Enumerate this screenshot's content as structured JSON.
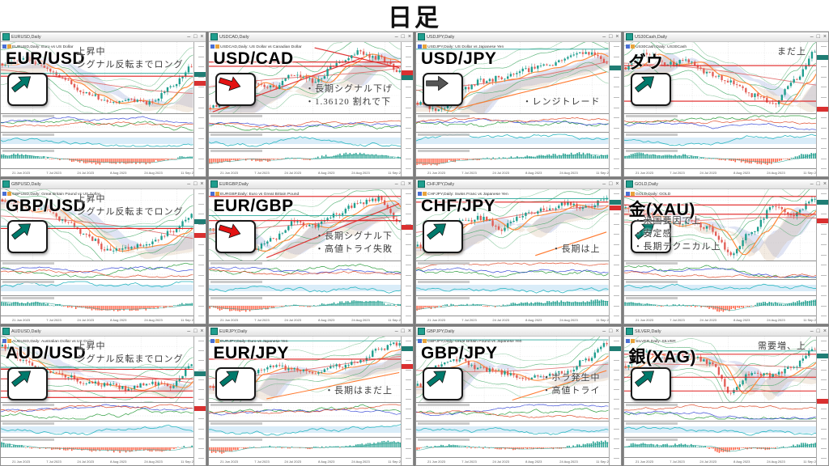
{
  "page": {
    "title": "日足"
  },
  "window_controls": {
    "minimize": "–",
    "maximize": "□",
    "close": "×"
  },
  "axis_dates": [
    "21 Jun 2023",
    "7 Jul 2023",
    "24 Jul 2023",
    "8 Aug 2023",
    "24 Aug 2023",
    "11 Sep 2023",
    "27 Sep 2023",
    "13 Oct 2023",
    "31 Oct 2023",
    "17 Nov 2023"
  ],
  "colors": {
    "candle_up": "#1f9e8e",
    "candle_down": "#e0544c",
    "bollinger": "#3aa45e",
    "ma_fast": "#ff8a3c",
    "ma_slow": "#e06666",
    "hline_red": "#e02020",
    "hline_teal": "#2aa79a",
    "hist_pos": "#1f9e8e",
    "hist_neg": "#ff5a3c",
    "osc_cyan": "#2ab6c0",
    "osc_green": "#2f9e3f",
    "osc_blue": "#4050d8",
    "osc_red": "#e05030",
    "arrow_up_teal": "#00796b",
    "arrow_down_red": "#e31212",
    "arrow_flat_gray": "#555555"
  },
  "panels": [
    {
      "window_title": "EURUSD,Daily",
      "info": "EURUSD,Daily: Euro vs US Dollar",
      "symbol": "EUR/USD",
      "arrow": {
        "dir": "up",
        "color": "#00796b"
      },
      "ann": {
        "pos": "tr",
        "lines": [
          "上昇中",
          "シグナル反転までロング"
        ]
      },
      "seed": 11,
      "trend": [
        0.3,
        0.22,
        0.35,
        0.55,
        0.72,
        0.84,
        0.8,
        0.86,
        0.62,
        0.36
      ],
      "red": [
        0.48
      ],
      "teal": [
        0.44
      ],
      "diag": []
    },
    {
      "window_title": "USDCAD,Daily",
      "info": "USDCAD,Daily: US Dollar vs Canadian Dollar",
      "symbol": "USD/CAD",
      "arrow": {
        "dir": "down",
        "color": "#e31212"
      },
      "ann": {
        "pos": "br",
        "lines": [
          "・長期シグナル下げ",
          "・1.36120 割れで下"
        ]
      },
      "seed": 23,
      "trend": [
        0.92,
        0.74,
        0.55,
        0.65,
        0.45,
        0.55,
        0.3,
        0.15,
        0.22,
        0.4
      ],
      "red": [
        0.28,
        0.34
      ],
      "teal": [],
      "diag": [
        [
          0.02,
          0.98,
          0.8,
          0.22,
          "#e03030"
        ],
        [
          0.55,
          0.08,
          0.99,
          0.36,
          "#e03030"
        ]
      ]
    },
    {
      "window_title": "USDJPY,Daily",
      "info": "USDJPY,Daily: US Dollar vs Japanese Yen",
      "symbol": "USD/JPY",
      "arrow": {
        "dir": "right",
        "color": "#555555"
      },
      "ann": {
        "pos": "br",
        "lines": [
          "・レンジトレード"
        ]
      },
      "seed": 37,
      "trend": [
        0.85,
        0.95,
        0.68,
        0.55,
        0.5,
        0.4,
        0.34,
        0.24,
        0.14,
        0.28
      ],
      "red": [],
      "teal": [
        0.1
      ],
      "diag": [
        [
          0.22,
          0.93,
          0.99,
          0.42,
          "#ff7a30"
        ]
      ]
    },
    {
      "window_title": "US30Cash,Daily",
      "info": "US30Cash,Daily: US30Cash",
      "symbol": "ダウ",
      "arrow": {
        "dir": "up",
        "color": "#00796b"
      },
      "ann": {
        "pos": "tr",
        "lines": [
          "まだ上"
        ]
      },
      "seed": 41,
      "trend": [
        0.35,
        0.15,
        0.3,
        0.26,
        0.45,
        0.55,
        0.75,
        0.86,
        0.55,
        0.14
      ],
      "red": [
        0.33,
        0.83
      ],
      "teal": [],
      "diag": []
    },
    {
      "window_title": "GBPUSD,Daily",
      "info": "GBPUSD,Daily: Great Britain Pound vs US Dollar",
      "symbol": "GBP/USD",
      "arrow": {
        "dir": "up",
        "color": "#00796b"
      },
      "ann": {
        "pos": "tr",
        "lines": [
          "上昇中",
          "シグナル反転までロング"
        ]
      },
      "seed": 53,
      "trend": [
        0.14,
        0.3,
        0.25,
        0.45,
        0.65,
        0.85,
        0.8,
        0.76,
        0.6,
        0.36
      ],
      "red": [
        0.55
      ],
      "teal": [
        0.52
      ],
      "diag": []
    },
    {
      "window_title": "EURGBP,Daily",
      "info": "EURGBP,Daily: Euro vs Great Britain Pound",
      "symbol": "EUR/GBP",
      "arrow": {
        "dir": "down",
        "color": "#e31212"
      },
      "ann": {
        "pos": "br",
        "lines": [
          "・長期シグナル下",
          "・高値トライ失敗"
        ]
      },
      "seed": 67,
      "trend": [
        0.55,
        0.76,
        0.85,
        0.7,
        0.46,
        0.52,
        0.35,
        0.2,
        0.14,
        0.44
      ],
      "red": [
        0.1,
        0.44
      ],
      "teal": [
        0.37
      ],
      "diag": [
        [
          0.3,
          0.96,
          0.99,
          0.2,
          "#e03030"
        ]
      ]
    },
    {
      "window_title": "CHFJPY,Daily",
      "info": "CHFJPY,Daily: Swiss Franc vs Japanese Yen",
      "symbol": "CHF/JPY",
      "arrow": {
        "dir": "up",
        "color": "#00796b"
      },
      "ann": {
        "pos": "br",
        "lines": [
          "・長期は上"
        ]
      },
      "seed": 71,
      "trend": [
        0.8,
        0.64,
        0.45,
        0.4,
        0.55,
        0.35,
        0.3,
        0.2,
        0.26,
        0.1
      ],
      "red": [
        0.18
      ],
      "teal": [
        0.13
      ],
      "diag": [
        [
          0.62,
          0.93,
          0.99,
          0.6,
          "#ff7a30"
        ]
      ]
    },
    {
      "window_title": "GOLD,Daily",
      "info": "GOLD,Daily: GOLD",
      "symbol": "金(XAU)",
      "arrow": {
        "dir": "up",
        "color": "#00796b"
      },
      "ann": {
        "pos": "bl",
        "lines": [
          "・米国要因で上",
          "・安定感",
          "・長期テクニカル上"
        ]
      },
      "seed": 83,
      "trend": [
        0.25,
        0.35,
        0.5,
        0.45,
        0.55,
        0.9,
        0.58,
        0.25,
        0.36,
        0.1
      ],
      "red": [
        0.1,
        0.22,
        0.35
      ],
      "teal": [],
      "diag": []
    },
    {
      "window_title": "AUDUSD,Daily",
      "info": "AUDUSD,Daily: Australian Dollar vs US Dollar",
      "symbol": "AUD/USD",
      "arrow": {
        "dir": "up",
        "color": "#00796b"
      },
      "ann": {
        "pos": "tr",
        "lines": [
          "上昇中",
          "シグナル反転までロング"
        ]
      },
      "seed": 97,
      "trend": [
        0.15,
        0.35,
        0.55,
        0.6,
        0.7,
        0.74,
        0.8,
        0.7,
        0.76,
        0.45
      ],
      "red": [
        0.5,
        0.645,
        0.83,
        0.93
      ],
      "teal": [
        0.47
      ],
      "diag": []
    },
    {
      "window_title": "EURJPY,Daily",
      "info": "EURJPY,Daily: Euro vs Japanese Yen",
      "symbol": "EUR/JPY",
      "arrow": {
        "dir": "up",
        "color": "#00796b"
      },
      "ann": {
        "pos": "br",
        "lines": [
          "・長期はまだ上"
        ]
      },
      "seed": 101,
      "trend": [
        0.75,
        0.86,
        0.55,
        0.46,
        0.5,
        0.55,
        0.45,
        0.4,
        0.2,
        0.1
      ],
      "red": [
        0.345
      ],
      "teal": [
        0.065
      ],
      "diag": [
        [
          0.3,
          0.95,
          0.99,
          0.55,
          "#ff7a30"
        ]
      ]
    },
    {
      "window_title": "GBPJPY,Daily",
      "info": "GBPJPY,Daily: Great Britain Pound vs Japanese Yen",
      "symbol": "GBP/JPY",
      "arrow": {
        "dir": "up",
        "color": "#00796b"
      },
      "ann": {
        "pos": "br",
        "lines": [
          "・ボラ発生中",
          "・高値トライ"
        ]
      },
      "seed": 113,
      "trend": [
        0.75,
        0.45,
        0.35,
        0.5,
        0.55,
        0.65,
        0.6,
        0.55,
        0.35,
        0.1
      ],
      "red": [],
      "teal": [
        0.05
      ],
      "diag": [
        [
          0.5,
          0.97,
          0.99,
          0.52,
          "#ff7a30"
        ]
      ]
    },
    {
      "window_title": "SILVER,Daily",
      "info": "SILVER,Daily: SILVER",
      "symbol": "銀(XAG)",
      "arrow": {
        "dir": "up",
        "color": "#00796b"
      },
      "ann": {
        "pos": "tr",
        "lines": [
          "需要増、上"
        ]
      },
      "seed": 127,
      "trend": [
        0.45,
        0.25,
        0.35,
        0.3,
        0.4,
        0.85,
        0.55,
        0.6,
        0.45,
        0.2
      ],
      "red": [
        0.27,
        0.62,
        0.83
      ],
      "teal": [
        0.22
      ],
      "diag": []
    }
  ]
}
